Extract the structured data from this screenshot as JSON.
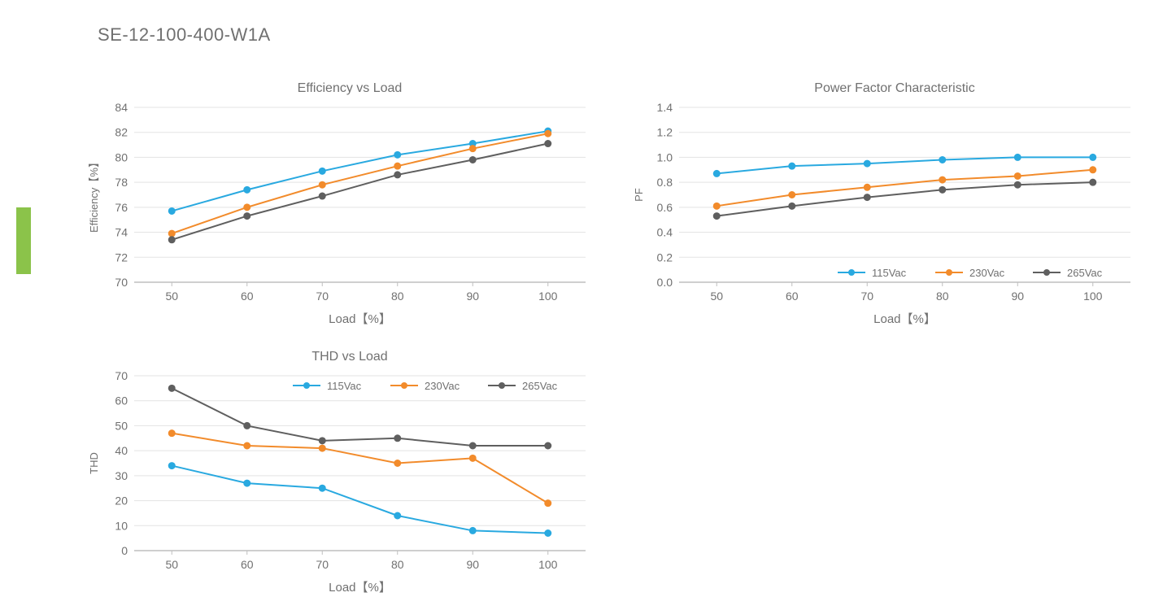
{
  "page_title": "SE-12-100-400-W1A",
  "colors": {
    "series_115": "#29a9e0",
    "series_230": "#f28b2b",
    "series_265": "#5f5f5f",
    "axis_line": "#bfbfbf",
    "grid_line": "#e3e3e3",
    "text": "#707070",
    "green_tab": "#8bc34a",
    "bg": "#ffffff"
  },
  "line_width": 2,
  "marker_radius": 4,
  "x_categories": [
    "50",
    "60",
    "70",
    "80",
    "90",
    "100"
  ],
  "x_label": "Load【%】",
  "legend_items": [
    "115Vac",
    "230Vac",
    "265Vac"
  ],
  "charts": [
    {
      "id": "efficiency",
      "title": "Efficiency vs Load",
      "y_label": "Efficiency【%】",
      "y_min": 70,
      "y_max": 84,
      "y_step": 2,
      "show_legend": false,
      "series": [
        {
          "name": "115Vac",
          "color_key": "series_115",
          "values": [
            75.7,
            77.4,
            78.9,
            80.2,
            81.1,
            82.1
          ]
        },
        {
          "name": "230Vac",
          "color_key": "series_230",
          "values": [
            73.9,
            76.0,
            77.8,
            79.3,
            80.7,
            81.9
          ]
        },
        {
          "name": "265Vac",
          "color_key": "series_265",
          "values": [
            73.4,
            75.3,
            76.9,
            78.6,
            79.8,
            81.1
          ]
        }
      ]
    },
    {
      "id": "pf",
      "title": "Power Factor Characteristic",
      "y_label": "PF",
      "y_min": 0.0,
      "y_max": 1.4,
      "y_step": 0.2,
      "show_legend": true,
      "legend_pos": "bottom",
      "series": [
        {
          "name": "115Vac",
          "color_key": "series_115",
          "values": [
            0.87,
            0.93,
            0.95,
            0.98,
            1.0,
            1.0
          ]
        },
        {
          "name": "230Vac",
          "color_key": "series_230",
          "values": [
            0.61,
            0.7,
            0.76,
            0.82,
            0.85,
            0.9
          ]
        },
        {
          "name": "265Vac",
          "color_key": "series_265",
          "values": [
            0.53,
            0.61,
            0.68,
            0.74,
            0.78,
            0.8
          ]
        }
      ]
    },
    {
      "id": "thd",
      "title": "THD vs Load",
      "y_label": "THD",
      "y_min": 0,
      "y_max": 70,
      "y_step": 10,
      "show_legend": true,
      "legend_pos": "top",
      "series": [
        {
          "name": "115Vac",
          "color_key": "series_115",
          "values": [
            34,
            27,
            25,
            14,
            8,
            7
          ]
        },
        {
          "name": "230Vac",
          "color_key": "series_230",
          "values": [
            47,
            42,
            41,
            35,
            37,
            19
          ]
        },
        {
          "name": "265Vac",
          "color_key": "series_265",
          "values": [
            65,
            50,
            44,
            45,
            42,
            42
          ]
        }
      ]
    }
  ]
}
